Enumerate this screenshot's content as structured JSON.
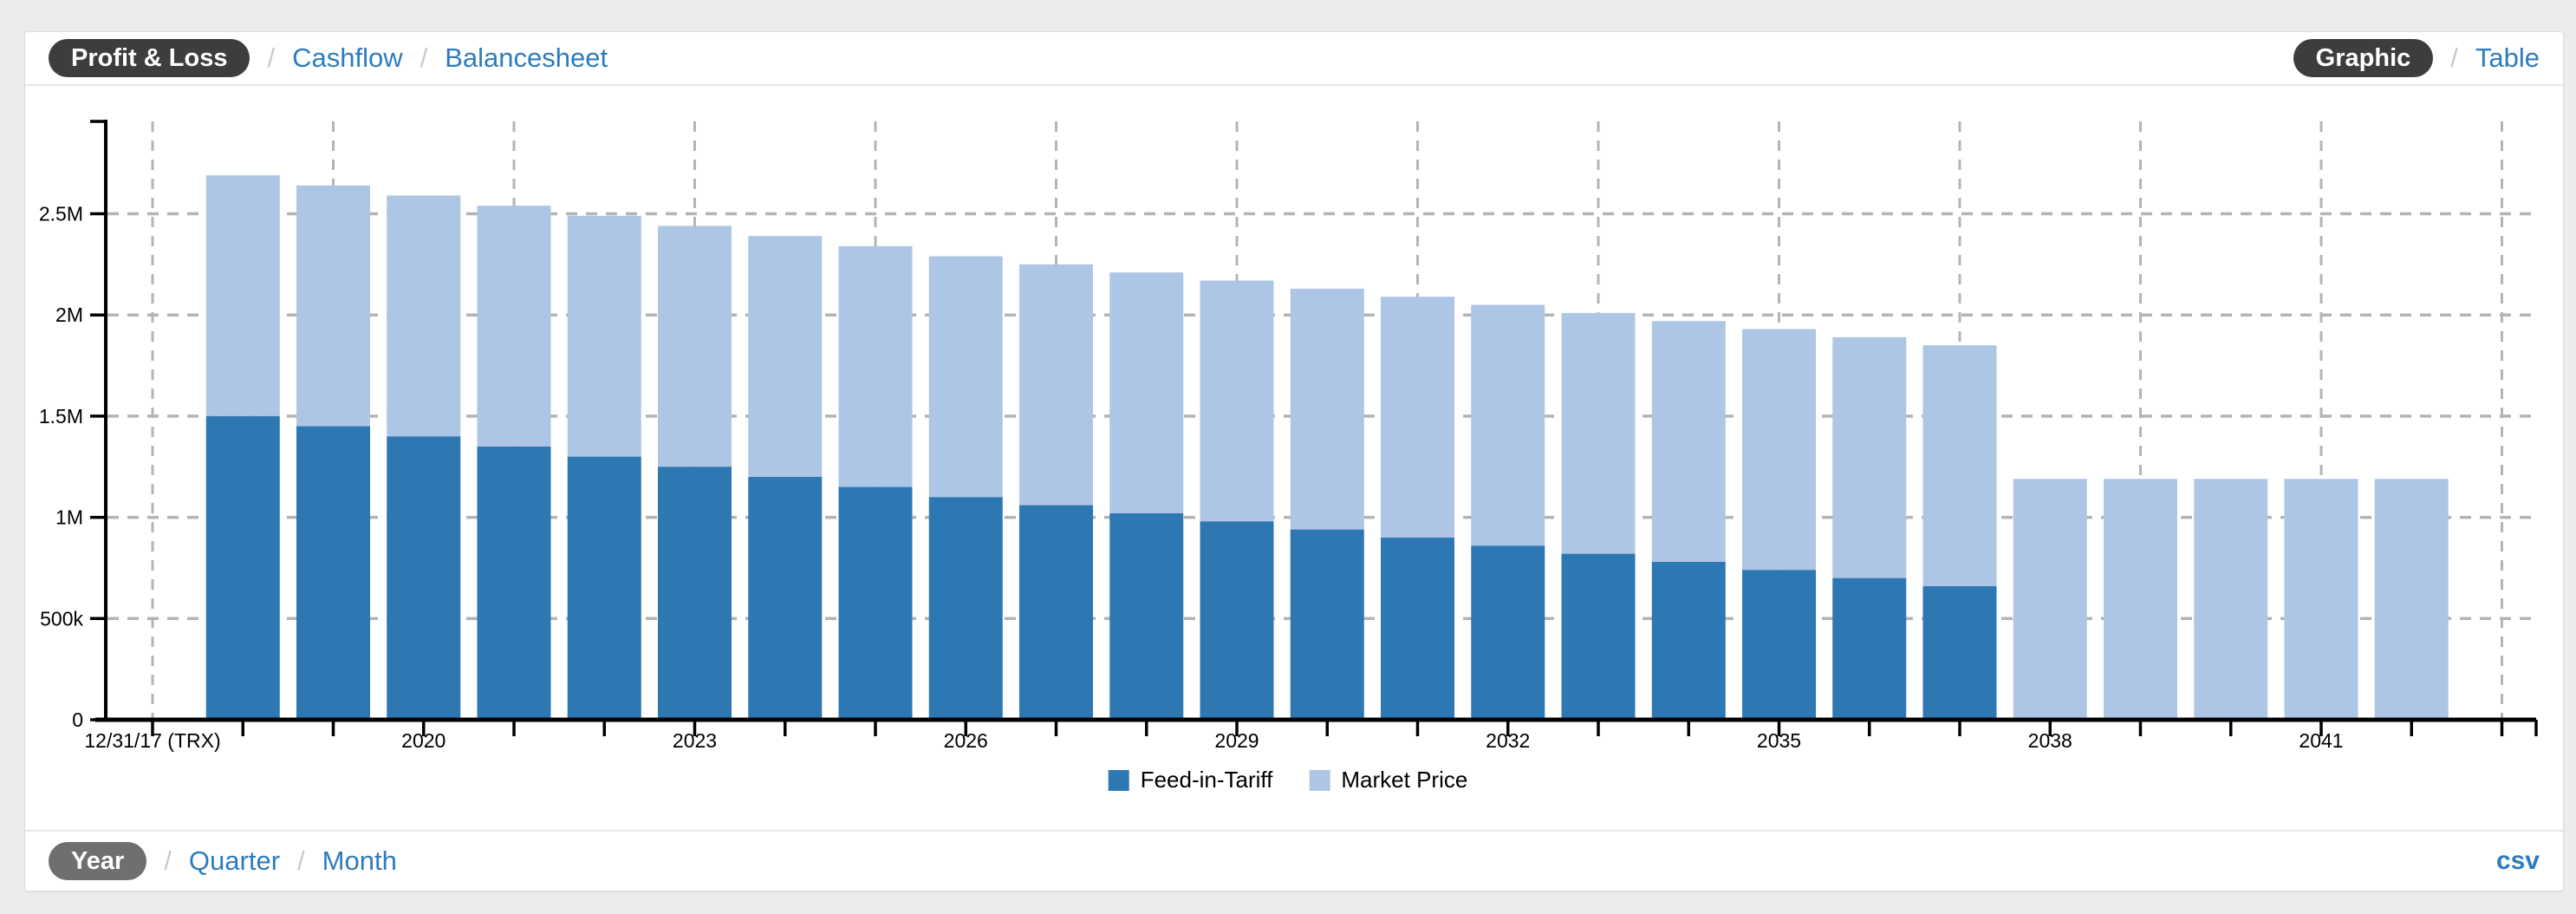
{
  "header": {
    "separator": "/",
    "report_tabs": [
      {
        "label": "Profit & Loss",
        "active": true
      },
      {
        "label": "Cashflow",
        "active": false
      },
      {
        "label": "Balancesheet",
        "active": false
      }
    ],
    "view_tabs": [
      {
        "label": "Graphic",
        "active": true
      },
      {
        "label": "Table",
        "active": false
      }
    ]
  },
  "footer": {
    "separator": "/",
    "period_tabs": [
      {
        "label": "Year",
        "active": true
      },
      {
        "label": "Quarter",
        "active": false
      },
      {
        "label": "Month",
        "active": false
      }
    ],
    "export_label": "csv"
  },
  "colors": {
    "feed_in_tariff": "#2d77b3",
    "market_price": "#aec6e6",
    "link_blue": "#2d7cbf",
    "active_pill_dark": "#3d3d3d",
    "active_pill_gray": "#6f6f6f",
    "grid": "#b4b4b4",
    "axis": "#000000",
    "page_background": "#ececec"
  },
  "chart_data": {
    "type": "bar",
    "stacked": true,
    "title": "",
    "xlabel": "",
    "ylabel": "",
    "grid": "dashed",
    "legend_position": "bottom",
    "x_axis_start_label": "12/31/17 (TRX)",
    "years": [
      2018,
      2019,
      2020,
      2021,
      2022,
      2023,
      2024,
      2025,
      2026,
      2027,
      2028,
      2029,
      2030,
      2031,
      2032,
      2033,
      2034,
      2035,
      2036,
      2037,
      2038,
      2039,
      2040,
      2041,
      2042
    ],
    "labeled_year_ticks": [
      2020,
      2023,
      2026,
      2029,
      2032,
      2035,
      2038,
      2041
    ],
    "y_tick_labels": [
      "0",
      "500k",
      "1M",
      "1.5M",
      "2M",
      "2.5M"
    ],
    "y_tick_values": [
      0,
      500000,
      1000000,
      1500000,
      2000000,
      2500000
    ],
    "ylim": [
      0,
      2950000
    ],
    "series": [
      {
        "name": "Feed-in-Tariff",
        "color": "#2d77b3",
        "values": [
          1500000,
          1450000,
          1400000,
          1350000,
          1300000,
          1250000,
          1200000,
          1150000,
          1100000,
          1060000,
          1020000,
          980000,
          940000,
          900000,
          860000,
          820000,
          780000,
          740000,
          700000,
          660000,
          0,
          0,
          0,
          0,
          0
        ]
      },
      {
        "name": "Market Price",
        "color": "#aec6e6",
        "values": [
          1190000,
          1190000,
          1190000,
          1190000,
          1190000,
          1190000,
          1190000,
          1190000,
          1190000,
          1190000,
          1190000,
          1190000,
          1190000,
          1190000,
          1190000,
          1190000,
          1190000,
          1190000,
          1190000,
          1190000,
          1190000,
          1190000,
          1190000,
          1190000,
          1190000
        ]
      }
    ]
  }
}
